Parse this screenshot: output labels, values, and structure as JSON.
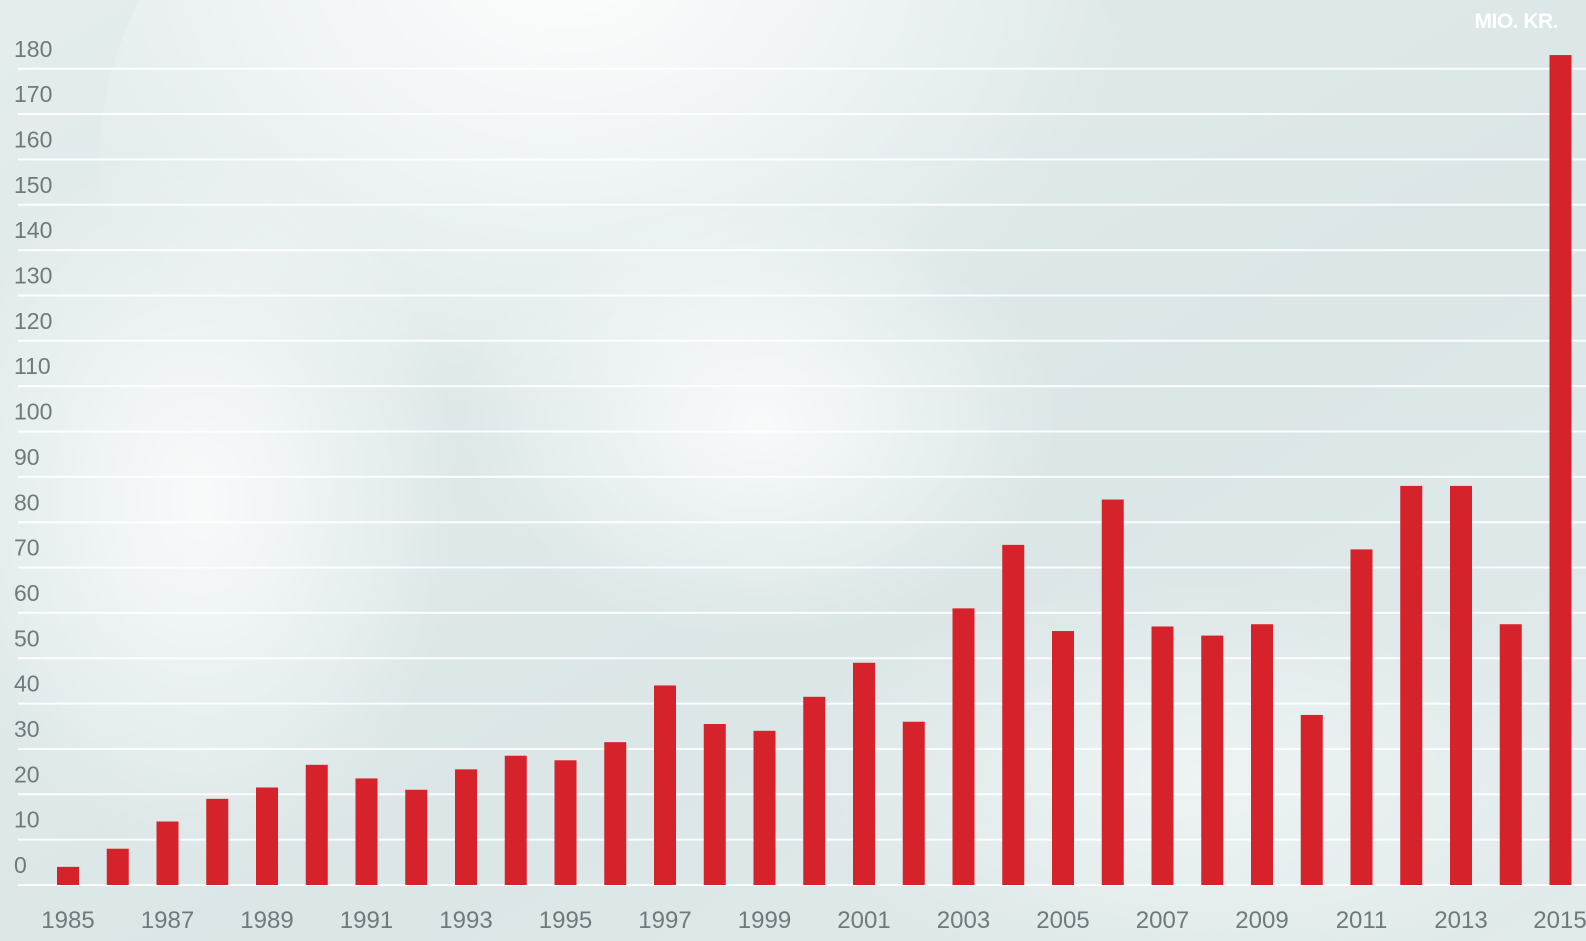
{
  "unit_label": "MIO. KR.",
  "colors": {
    "bar": "#d6222a",
    "grid": "#ffffff",
    "tick_text": "#6f7a7d"
  },
  "chart_data": {
    "type": "bar",
    "title": "",
    "xlabel": "",
    "ylabel": "MIO. KR.",
    "ylim": [
      0,
      180
    ],
    "yticks": [
      0,
      10,
      20,
      30,
      40,
      50,
      60,
      70,
      80,
      90,
      100,
      110,
      120,
      130,
      140,
      150,
      160,
      170,
      180
    ],
    "grid": true,
    "categories": [
      "1985",
      "1986",
      "1987",
      "1988",
      "1989",
      "1990",
      "1991",
      "1992",
      "1993",
      "1994",
      "1995",
      "1996",
      "1997",
      "1998",
      "1999",
      "2000",
      "2001",
      "2002",
      "2003",
      "2004",
      "2005",
      "2006",
      "2007",
      "2008",
      "2009",
      "2010",
      "2011",
      "2012",
      "2013",
      "2014",
      "2015"
    ],
    "xtick_labels": [
      "1985",
      "1987",
      "1989",
      "1991",
      "1993",
      "1995",
      "1997",
      "1999",
      "2001",
      "2003",
      "2005",
      "2007",
      "2009",
      "2011",
      "2013",
      "2015"
    ],
    "values": [
      4,
      8,
      14,
      19,
      21.5,
      26.5,
      23.5,
      21,
      25.5,
      28.5,
      27.5,
      31.5,
      44,
      35.5,
      34,
      41.5,
      49,
      36,
      61,
      75,
      56,
      85,
      57,
      55,
      57.5,
      37.5,
      74,
      88,
      88,
      57.5,
      183
    ]
  }
}
